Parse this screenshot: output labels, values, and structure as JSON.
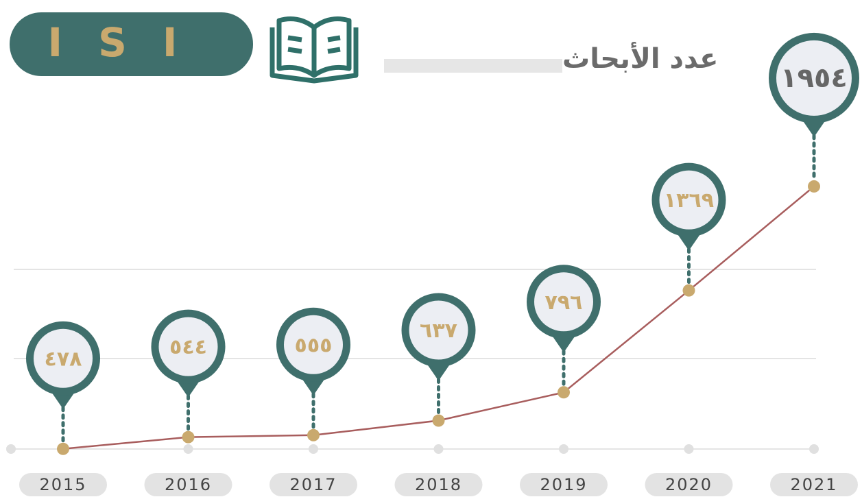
{
  "chart_data": {
    "type": "line",
    "title": "ISI",
    "subtitle": "عدد الأبحاث",
    "categories": [
      "2015",
      "2016",
      "2017",
      "2018",
      "2019",
      "2020",
      "2021"
    ],
    "values": [
      478,
      544,
      555,
      637,
      796,
      1369,
      1954
    ],
    "value_labels": [
      "٤٧٨",
      "٥٤٤",
      "٥٥٥",
      "٦٣٧",
      "٧٩٦",
      "١٣٦٩",
      "١٩٥٤"
    ],
    "color": "#a85d5d",
    "marker_color": "#c9a96e",
    "bubble_color": "#3f6f6c",
    "ylim": [
      400,
      2000
    ]
  }
}
